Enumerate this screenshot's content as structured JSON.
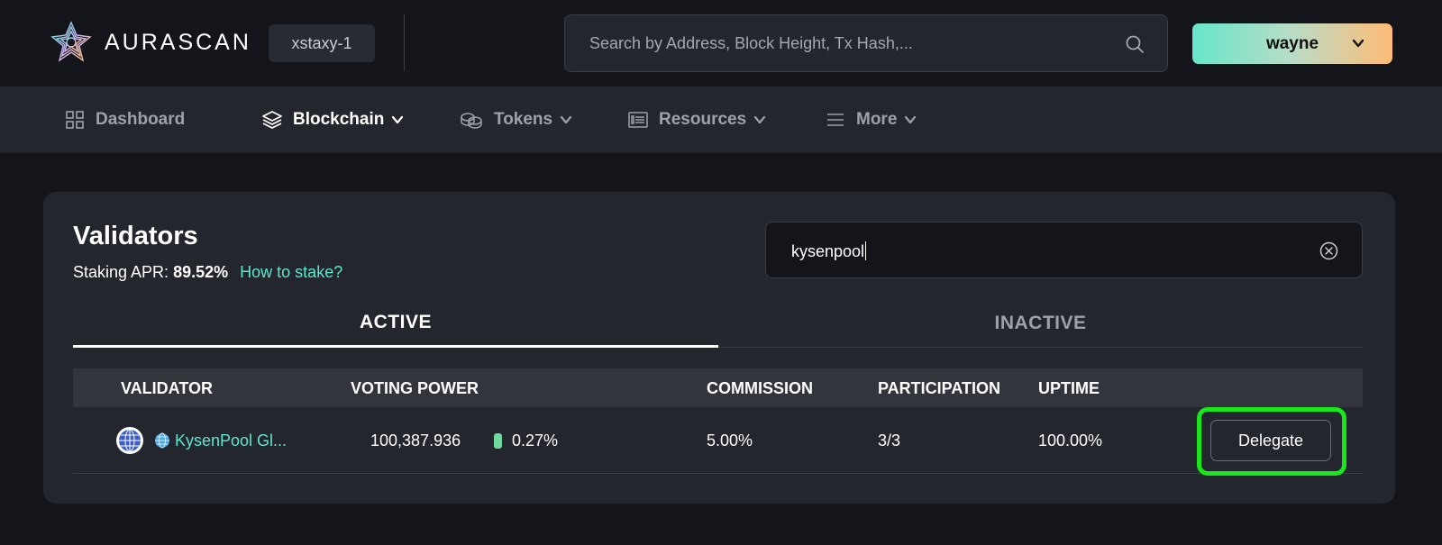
{
  "header": {
    "logo_text": "AURASCAN",
    "network": "xstaxy-1",
    "search_placeholder": "Search by Address, Block Height, Tx Hash,...",
    "wallet_label": "wayne"
  },
  "nav": {
    "items": [
      {
        "label": "Dashboard",
        "icon": "grid-icon",
        "active": false
      },
      {
        "label": "Blockchain",
        "icon": "layers-icon",
        "active": true
      },
      {
        "label": "Tokens",
        "icon": "coins-icon",
        "active": false
      },
      {
        "label": "Resources",
        "icon": "document-list-icon",
        "active": false
      },
      {
        "label": "More",
        "icon": "menu-icon",
        "active": false
      }
    ]
  },
  "validators": {
    "title": "Validators",
    "apr_label": "Staking APR:",
    "apr_value": "89.52%",
    "how_to_stake": "How to stake?",
    "filter_value": "kysenpool",
    "tabs": [
      {
        "label": "ACTIVE",
        "active": true
      },
      {
        "label": "INACTIVE",
        "active": false
      }
    ],
    "columns": [
      "VALIDATOR",
      "VOTING POWER",
      "COMMISSION",
      "PARTICIPATION",
      "UPTIME"
    ],
    "rows": [
      {
        "name": "KysenPool Gl...",
        "voting_power": "100,387.936",
        "voting_power_pct": "0.27%",
        "commission": "5.00%",
        "participation": "3/3",
        "uptime": "100.00%",
        "action": "Delegate"
      }
    ]
  },
  "colors": {
    "accent": "#5ee6d0",
    "highlight": "#19e61c",
    "background": "#14151a",
    "surface": "#24262d"
  }
}
